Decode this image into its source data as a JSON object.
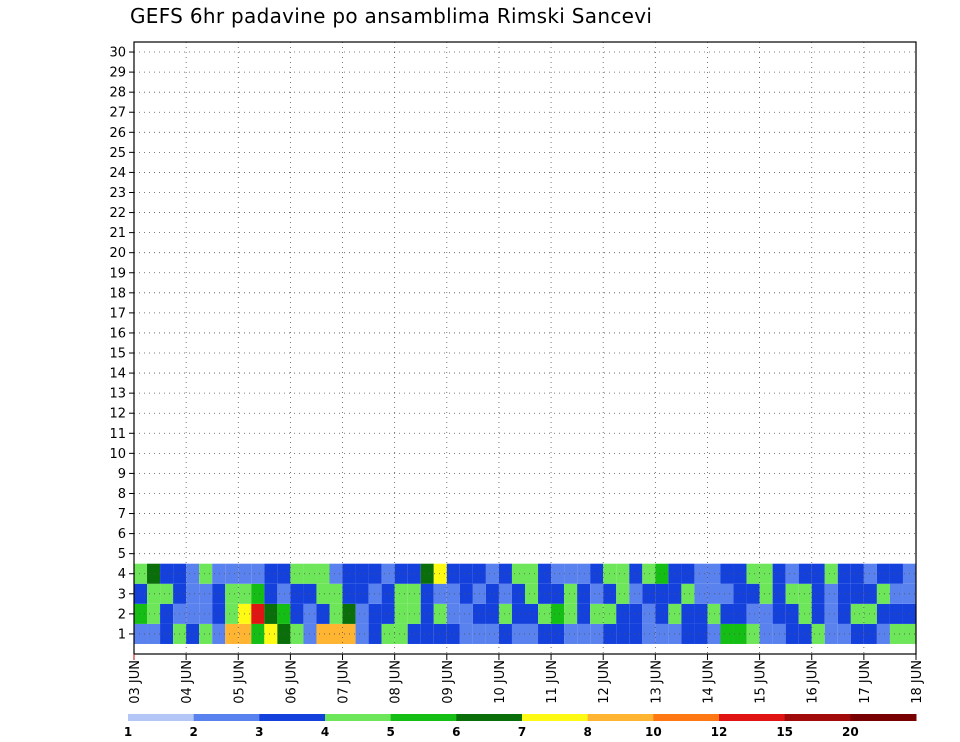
{
  "chart_data": {
    "type": "heatmap",
    "title": "GEFS 6hr padavine po ansamblima Rimski Sancevi",
    "y_categories": [
      "1",
      "2",
      "3",
      "4",
      "5",
      "6",
      "7",
      "8",
      "9",
      "10",
      "11",
      "12",
      "13",
      "14",
      "15",
      "16",
      "17",
      "18",
      "19",
      "20",
      "21",
      "22",
      "23",
      "24",
      "25",
      "26",
      "27",
      "28",
      "29",
      "30"
    ],
    "x_tick_labels": [
      "03 JUN",
      "04 JUN",
      "05 JUN",
      "06 JUN",
      "07 JUN",
      "08 JUN",
      "09 JUN",
      "10 JUN",
      "11 JUN",
      "12 JUN",
      "13 JUN",
      "14 JUN",
      "15 JUN",
      "16 JUN",
      "17 JUN",
      "18 JUN"
    ],
    "time_step_hours": 6,
    "legend": {
      "position": "bottom",
      "colors": [
        "#b4c6f5",
        "#5a82ee",
        "#1440dc",
        "#6ee65a",
        "#14be14",
        "#0a6e0a",
        "#fffa14",
        "#ffb432",
        "#ff7814",
        "#e11414",
        "#a00a0a",
        "#780000"
      ],
      "labels": [
        "1",
        "2",
        "3",
        "4",
        "5",
        "6",
        "7",
        "8",
        "10",
        "12",
        "15",
        "20"
      ]
    },
    "grid": true,
    "cells": [
      [
        1,
        0,
        1
      ],
      [
        1,
        1,
        1
      ],
      [
        1,
        2,
        2
      ],
      [
        1,
        3,
        3
      ],
      [
        1,
        4,
        2
      ],
      [
        1,
        5,
        3
      ],
      [
        1,
        6,
        1
      ],
      [
        1,
        7,
        7
      ],
      [
        1,
        8,
        7
      ],
      [
        1,
        9,
        4
      ],
      [
        1,
        10,
        6
      ],
      [
        1,
        11,
        5
      ],
      [
        1,
        12,
        3
      ],
      [
        1,
        13,
        1
      ],
      [
        1,
        14,
        7
      ],
      [
        1,
        15,
        7
      ],
      [
        1,
        16,
        7
      ],
      [
        1,
        17,
        1
      ],
      [
        1,
        18,
        2
      ],
      [
        1,
        19,
        3
      ],
      [
        1,
        20,
        3
      ],
      [
        1,
        21,
        2
      ],
      [
        1,
        22,
        2
      ],
      [
        1,
        23,
        2
      ],
      [
        1,
        24,
        2
      ],
      [
        1,
        25,
        1
      ],
      [
        1,
        26,
        1
      ],
      [
        1,
        27,
        1
      ],
      [
        1,
        28,
        2
      ],
      [
        1,
        29,
        1
      ],
      [
        1,
        30,
        1
      ],
      [
        1,
        31,
        2
      ],
      [
        1,
        32,
        2
      ],
      [
        1,
        33,
        1
      ],
      [
        1,
        34,
        1
      ],
      [
        1,
        35,
        1
      ],
      [
        1,
        36,
        2
      ],
      [
        1,
        37,
        2
      ],
      [
        1,
        38,
        2
      ],
      [
        1,
        39,
        1
      ],
      [
        1,
        40,
        1
      ],
      [
        1,
        41,
        1
      ],
      [
        1,
        42,
        2
      ],
      [
        1,
        43,
        2
      ],
      [
        1,
        44,
        1
      ],
      [
        1,
        45,
        4
      ],
      [
        1,
        46,
        4
      ],
      [
        1,
        47,
        3
      ],
      [
        1,
        48,
        1
      ],
      [
        1,
        49,
        1
      ],
      [
        1,
        50,
        2
      ],
      [
        1,
        51,
        2
      ],
      [
        1,
        52,
        3
      ],
      [
        1,
        53,
        1
      ],
      [
        1,
        54,
        1
      ],
      [
        1,
        55,
        2
      ],
      [
        1,
        56,
        2
      ],
      [
        1,
        57,
        1
      ],
      [
        1,
        58,
        3
      ],
      [
        1,
        59,
        3
      ],
      [
        2,
        0,
        4
      ],
      [
        2,
        1,
        3
      ],
      [
        2,
        2,
        2
      ],
      [
        2,
        3,
        1
      ],
      [
        2,
        4,
        1
      ],
      [
        2,
        5,
        1
      ],
      [
        2,
        6,
        2
      ],
      [
        2,
        7,
        3
      ],
      [
        2,
        8,
        6
      ],
      [
        2,
        9,
        9
      ],
      [
        2,
        10,
        5
      ],
      [
        2,
        11,
        4
      ],
      [
        2,
        12,
        2
      ],
      [
        2,
        13,
        1
      ],
      [
        2,
        14,
        2
      ],
      [
        2,
        15,
        3
      ],
      [
        2,
        16,
        5
      ],
      [
        2,
        17,
        1
      ],
      [
        2,
        18,
        2
      ],
      [
        2,
        19,
        2
      ],
      [
        2,
        20,
        3
      ],
      [
        2,
        21,
        3
      ],
      [
        2,
        22,
        2
      ],
      [
        2,
        23,
        3
      ],
      [
        2,
        24,
        1
      ],
      [
        2,
        25,
        1
      ],
      [
        2,
        26,
        2
      ],
      [
        2,
        27,
        2
      ],
      [
        2,
        28,
        3
      ],
      [
        2,
        29,
        2
      ],
      [
        2,
        30,
        2
      ],
      [
        2,
        31,
        3
      ],
      [
        2,
        32,
        4
      ],
      [
        2,
        33,
        3
      ],
      [
        2,
        34,
        2
      ],
      [
        2,
        35,
        3
      ],
      [
        2,
        36,
        3
      ],
      [
        2,
        37,
        2
      ],
      [
        2,
        38,
        2
      ],
      [
        2,
        39,
        1
      ],
      [
        2,
        40,
        2
      ],
      [
        2,
        41,
        3
      ],
      [
        2,
        42,
        2
      ],
      [
        2,
        43,
        2
      ],
      [
        2,
        44,
        3
      ],
      [
        2,
        45,
        2
      ],
      [
        2,
        46,
        2
      ],
      [
        2,
        47,
        1
      ],
      [
        2,
        48,
        1
      ],
      [
        2,
        49,
        2
      ],
      [
        2,
        50,
        2
      ],
      [
        2,
        51,
        3
      ],
      [
        2,
        52,
        2
      ],
      [
        2,
        53,
        1
      ],
      [
        2,
        54,
        2
      ],
      [
        2,
        55,
        3
      ],
      [
        2,
        56,
        3
      ],
      [
        2,
        57,
        2
      ],
      [
        2,
        58,
        2
      ],
      [
        2,
        59,
        2
      ],
      [
        3,
        0,
        2
      ],
      [
        3,
        1,
        3
      ],
      [
        3,
        2,
        3
      ],
      [
        3,
        3,
        2
      ],
      [
        3,
        4,
        1
      ],
      [
        3,
        5,
        1
      ],
      [
        3,
        6,
        2
      ],
      [
        3,
        7,
        3
      ],
      [
        3,
        8,
        3
      ],
      [
        3,
        9,
        4
      ],
      [
        3,
        10,
        2
      ],
      [
        3,
        11,
        1
      ],
      [
        3,
        12,
        2
      ],
      [
        3,
        13,
        2
      ],
      [
        3,
        14,
        3
      ],
      [
        3,
        15,
        3
      ],
      [
        3,
        16,
        2
      ],
      [
        3,
        17,
        2
      ],
      [
        3,
        18,
        1
      ],
      [
        3,
        19,
        2
      ],
      [
        3,
        20,
        3
      ],
      [
        3,
        21,
        3
      ],
      [
        3,
        22,
        2
      ],
      [
        3,
        23,
        1
      ],
      [
        3,
        24,
        1
      ],
      [
        3,
        25,
        2
      ],
      [
        3,
        26,
        1
      ],
      [
        3,
        27,
        2
      ],
      [
        3,
        28,
        1
      ],
      [
        3,
        29,
        2
      ],
      [
        3,
        30,
        3
      ],
      [
        3,
        31,
        2
      ],
      [
        3,
        32,
        2
      ],
      [
        3,
        33,
        3
      ],
      [
        3,
        34,
        2
      ],
      [
        3,
        35,
        1
      ],
      [
        3,
        36,
        2
      ],
      [
        3,
        37,
        3
      ],
      [
        3,
        38,
        1
      ],
      [
        3,
        39,
        2
      ],
      [
        3,
        40,
        2
      ],
      [
        3,
        41,
        2
      ],
      [
        3,
        42,
        3
      ],
      [
        3,
        43,
        1
      ],
      [
        3,
        44,
        1
      ],
      [
        3,
        45,
        1
      ],
      [
        3,
        46,
        2
      ],
      [
        3,
        47,
        2
      ],
      [
        3,
        48,
        3
      ],
      [
        3,
        49,
        2
      ],
      [
        3,
        50,
        3
      ],
      [
        3,
        51,
        3
      ],
      [
        3,
        52,
        2
      ],
      [
        3,
        53,
        1
      ],
      [
        3,
        54,
        2
      ],
      [
        3,
        55,
        2
      ],
      [
        3,
        56,
        2
      ],
      [
        3,
        57,
        3
      ],
      [
        3,
        58,
        1
      ],
      [
        3,
        59,
        1
      ],
      [
        4,
        0,
        3
      ],
      [
        4,
        1,
        5
      ],
      [
        4,
        2,
        2
      ],
      [
        4,
        3,
        2
      ],
      [
        4,
        4,
        1
      ],
      [
        4,
        5,
        3
      ],
      [
        4,
        6,
        1
      ],
      [
        4,
        7,
        1
      ],
      [
        4,
        8,
        1
      ],
      [
        4,
        9,
        1
      ],
      [
        4,
        10,
        2
      ],
      [
        4,
        11,
        2
      ],
      [
        4,
        12,
        3
      ],
      [
        4,
        13,
        3
      ],
      [
        4,
        14,
        3
      ],
      [
        4,
        15,
        1
      ],
      [
        4,
        16,
        2
      ],
      [
        4,
        17,
        2
      ],
      [
        4,
        18,
        2
      ],
      [
        4,
        19,
        1
      ],
      [
        4,
        20,
        2
      ],
      [
        4,
        21,
        2
      ],
      [
        4,
        22,
        5
      ],
      [
        4,
        23,
        6
      ],
      [
        4,
        24,
        2
      ],
      [
        4,
        25,
        2
      ],
      [
        4,
        26,
        2
      ],
      [
        4,
        27,
        1
      ],
      [
        4,
        28,
        2
      ],
      [
        4,
        29,
        3
      ],
      [
        4,
        30,
        3
      ],
      [
        4,
        31,
        2
      ],
      [
        4,
        32,
        1
      ],
      [
        4,
        33,
        1
      ],
      [
        4,
        34,
        1
      ],
      [
        4,
        35,
        2
      ],
      [
        4,
        36,
        3
      ],
      [
        4,
        37,
        3
      ],
      [
        4,
        38,
        2
      ],
      [
        4,
        39,
        3
      ],
      [
        4,
        40,
        4
      ],
      [
        4,
        41,
        2
      ],
      [
        4,
        42,
        2
      ],
      [
        4,
        43,
        1
      ],
      [
        4,
        44,
        1
      ],
      [
        4,
        45,
        2
      ],
      [
        4,
        46,
        2
      ],
      [
        4,
        47,
        3
      ],
      [
        4,
        48,
        3
      ],
      [
        4,
        49,
        2
      ],
      [
        4,
        50,
        1
      ],
      [
        4,
        51,
        2
      ],
      [
        4,
        52,
        2
      ],
      [
        4,
        53,
        3
      ],
      [
        4,
        54,
        2
      ],
      [
        4,
        55,
        2
      ],
      [
        4,
        56,
        1
      ],
      [
        4,
        57,
        2
      ],
      [
        4,
        58,
        2
      ],
      [
        4,
        59,
        1
      ]
    ]
  }
}
